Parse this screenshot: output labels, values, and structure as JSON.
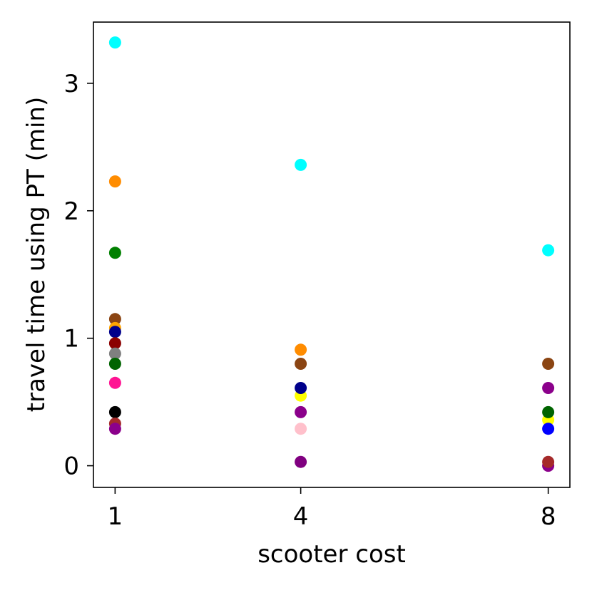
{
  "chart_data": {
    "type": "scatter",
    "title": "",
    "xlabel": "scooter cost",
    "ylabel": "travel time using PT (min)",
    "x_ticks": [
      1,
      4,
      8
    ],
    "y_ticks": [
      0,
      1,
      2,
      3
    ],
    "x_tick_labels": [
      "1",
      "4",
      "8"
    ],
    "y_tick_labels": [
      "0",
      "1",
      "2",
      "3"
    ],
    "xlim": [
      0.65,
      8.35
    ],
    "ylim": [
      -0.17,
      3.48
    ],
    "grid": false,
    "legend": "none",
    "points": [
      {
        "x": 1,
        "y": 3.32,
        "color": "#00ffff"
      },
      {
        "x": 1,
        "y": 2.23,
        "color": "#ff8c00"
      },
      {
        "x": 1,
        "y": 1.67,
        "color": "#008000"
      },
      {
        "x": 1,
        "y": 1.15,
        "color": "#8b4513"
      },
      {
        "x": 1,
        "y": 1.08,
        "color": "#ffa500"
      },
      {
        "x": 1,
        "y": 1.05,
        "color": "#00008b"
      },
      {
        "x": 1,
        "y": 0.96,
        "color": "#8b0000"
      },
      {
        "x": 1,
        "y": 0.88,
        "color": "#808080"
      },
      {
        "x": 1,
        "y": 0.8,
        "color": "#006400"
      },
      {
        "x": 1,
        "y": 0.65,
        "color": "#ff1493"
      },
      {
        "x": 1,
        "y": 0.42,
        "color": "#000000"
      },
      {
        "x": 1,
        "y": 0.33,
        "color": "#a52a2a"
      },
      {
        "x": 1,
        "y": 0.29,
        "color": "#8b008b"
      },
      {
        "x": 4,
        "y": 2.36,
        "color": "#00ffff"
      },
      {
        "x": 4,
        "y": 0.91,
        "color": "#ff8c00"
      },
      {
        "x": 4,
        "y": 0.8,
        "color": "#8b4513"
      },
      {
        "x": 4,
        "y": 0.55,
        "color": "#ffff00"
      },
      {
        "x": 4,
        "y": 0.61,
        "color": "#00008b"
      },
      {
        "x": 4,
        "y": 0.42,
        "color": "#8b008b"
      },
      {
        "x": 4,
        "y": 0.29,
        "color": "#ffc0cb"
      },
      {
        "x": 4,
        "y": 0.03,
        "color": "#800080"
      },
      {
        "x": 8,
        "y": 1.69,
        "color": "#00ffff"
      },
      {
        "x": 8,
        "y": 0.8,
        "color": "#8b4513"
      },
      {
        "x": 8,
        "y": 0.61,
        "color": "#8b008b"
      },
      {
        "x": 8,
        "y": 0.36,
        "color": "#ffff00"
      },
      {
        "x": 8,
        "y": 0.42,
        "color": "#006400"
      },
      {
        "x": 8,
        "y": 0.29,
        "color": "#0000ff"
      },
      {
        "x": 8,
        "y": 0.0,
        "color": "#8b008b"
      },
      {
        "x": 8,
        "y": 0.03,
        "color": "#a52a2a"
      }
    ]
  }
}
